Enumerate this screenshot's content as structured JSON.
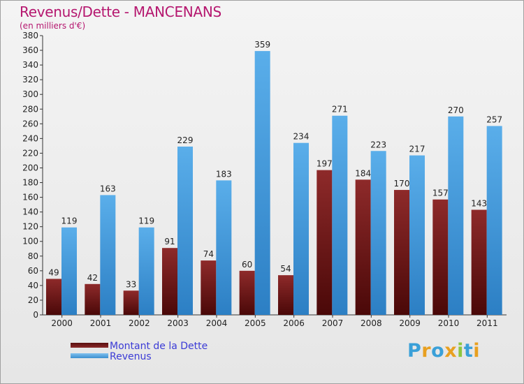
{
  "title": "Revenus/Dette - MANCENANS",
  "subtitle": "(en milliers d'€)",
  "colors": {
    "debt": "#7a1c1c",
    "revenue": "#4fa3e3",
    "title": "#b5176f",
    "legend_text": "#3b3bd6"
  },
  "legend": [
    {
      "label": "Montant de la Dette",
      "series": "debt"
    },
    {
      "label": "Revenus",
      "series": "revenue"
    }
  ],
  "logo": {
    "text": "Proxiti",
    "letters": [
      {
        "ch": "P",
        "color": "#3aa0d8"
      },
      {
        "ch": "r",
        "color": "#e8a020"
      },
      {
        "ch": "o",
        "color": "#3aa0d8"
      },
      {
        "ch": "x",
        "color": "#e8a020"
      },
      {
        "ch": "i",
        "color": "#8dc63f"
      },
      {
        "ch": "t",
        "color": "#3aa0d8"
      },
      {
        "ch": "i",
        "color": "#e8a020"
      }
    ]
  },
  "chart_data": {
    "type": "bar",
    "title": "Revenus/Dette - MANCENANS",
    "ylabel": "(en milliers d'€)",
    "xlabel": "",
    "ylim": [
      0,
      380
    ],
    "ytick_step": 20,
    "grid": false,
    "legend_position": "bottom-left",
    "categories": [
      "2000",
      "2001",
      "2002",
      "2003",
      "2004",
      "2005",
      "2006",
      "2007",
      "2008",
      "2009",
      "2010",
      "2011"
    ],
    "series": [
      {
        "name": "Montant de la Dette",
        "key": "debt",
        "values": [
          49,
          42,
          33,
          91,
          74,
          60,
          54,
          197,
          184,
          170,
          157,
          143
        ]
      },
      {
        "name": "Revenus",
        "key": "revenue",
        "values": [
          119,
          163,
          119,
          229,
          183,
          359,
          234,
          271,
          223,
          217,
          270,
          257
        ]
      }
    ]
  }
}
